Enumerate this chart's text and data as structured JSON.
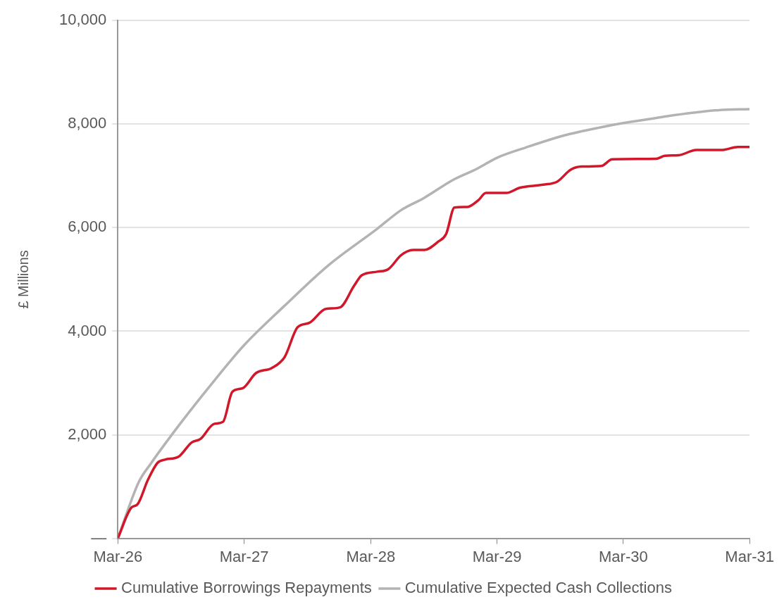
{
  "chart_data": {
    "type": "line",
    "ylabel": "£ Millions",
    "xlim": [
      "2026-03",
      "2031-03"
    ],
    "xticks": [
      {
        "value": "2026-03",
        "label": "Mar-26"
      },
      {
        "value": "2027-03",
        "label": "Mar-27"
      },
      {
        "value": "2028-03",
        "label": "Mar-28"
      },
      {
        "value": "2029-03",
        "label": "Mar-29"
      },
      {
        "value": "2030-03",
        "label": "Mar-30"
      },
      {
        "value": "2031-03",
        "label": "Mar-31"
      }
    ],
    "ylim": [
      0,
      10000
    ],
    "yticks": [
      {
        "value": 0,
        "label": "—"
      },
      {
        "value": 2000,
        "label": "2,000"
      },
      {
        "value": 4000,
        "label": "4,000"
      },
      {
        "value": 6000,
        "label": "6,000"
      },
      {
        "value": 8000,
        "label": "8,000"
      },
      {
        "value": 10000,
        "label": "10,000"
      }
    ],
    "grid": "y",
    "legend": "bottom",
    "marker": "none",
    "line_style": "solid",
    "series": [
      {
        "name": "Cumulative Borrowings Repayments",
        "color": "#d0182a",
        "x": [
          "2026-03-01",
          "2026-04-10",
          "2026-04-26",
          "2026-05-27",
          "2026-06-24",
          "2026-07-15",
          "2026-08-24",
          "2026-09-30",
          "2026-10-26",
          "2026-12-04",
          "2026-12-30",
          "2027-01-26",
          "2027-02-25",
          "2027-04-04",
          "2027-05-20",
          "2027-06-26",
          "2027-08-03",
          "2027-09-05",
          "2027-10-23",
          "2027-12-03",
          "2028-01-13",
          "2028-02-04",
          "2028-03-20",
          "2028-04-21",
          "2028-05-28",
          "2028-07-01",
          "2028-08-03",
          "2028-09-12",
          "2028-10-05",
          "2028-10-29",
          "2028-12-05",
          "2029-01-06",
          "2029-01-28",
          "2029-03-28",
          "2029-05-05",
          "2029-07-13",
          "2029-08-22",
          "2029-09-30",
          "2029-10-31",
          "2029-12-27",
          "2030-01-28",
          "2030-06-04",
          "2030-06-29",
          "2030-08-08",
          "2030-09-28",
          "2030-12-10",
          "2031-01-26",
          "2031-03-01"
        ],
        "values": [
          0,
          600,
          650,
          1130,
          1460,
          1520,
          1580,
          1850,
          1920,
          2210,
          2250,
          2830,
          2900,
          3190,
          3290,
          3500,
          4080,
          4160,
          4430,
          4460,
          4880,
          5080,
          5150,
          5200,
          5470,
          5570,
          5570,
          5730,
          5880,
          6390,
          6400,
          6530,
          6670,
          6670,
          6770,
          6830,
          6890,
          7120,
          7180,
          7190,
          7320,
          7330,
          7390,
          7400,
          7500,
          7500,
          7560,
          7560
        ]
      },
      {
        "name": "Cumulative Expected Cash Collections",
        "color": "#b3b3b3",
        "x": [
          "2026-03-01",
          "2026-04-30",
          "2026-06-04",
          "2026-08-30",
          "2026-12-04",
          "2027-03-01",
          "2027-06-24",
          "2027-10-30",
          "2028-03-20",
          "2028-05-28",
          "2028-08-01",
          "2028-10-27",
          "2028-12-31",
          "2029-03-01",
          "2029-05-24",
          "2029-09-10",
          "2029-12-27",
          "2030-03-01",
          "2030-05-27",
          "2030-07-03",
          "2030-12-02",
          "2031-03-01"
        ],
        "values": [
          0,
          1080,
          1440,
          2230,
          3040,
          3730,
          4480,
          5270,
          5980,
          6340,
          6570,
          6930,
          7130,
          7350,
          7550,
          7780,
          7940,
          8020,
          8110,
          8150,
          8270,
          8290
        ]
      }
    ]
  }
}
